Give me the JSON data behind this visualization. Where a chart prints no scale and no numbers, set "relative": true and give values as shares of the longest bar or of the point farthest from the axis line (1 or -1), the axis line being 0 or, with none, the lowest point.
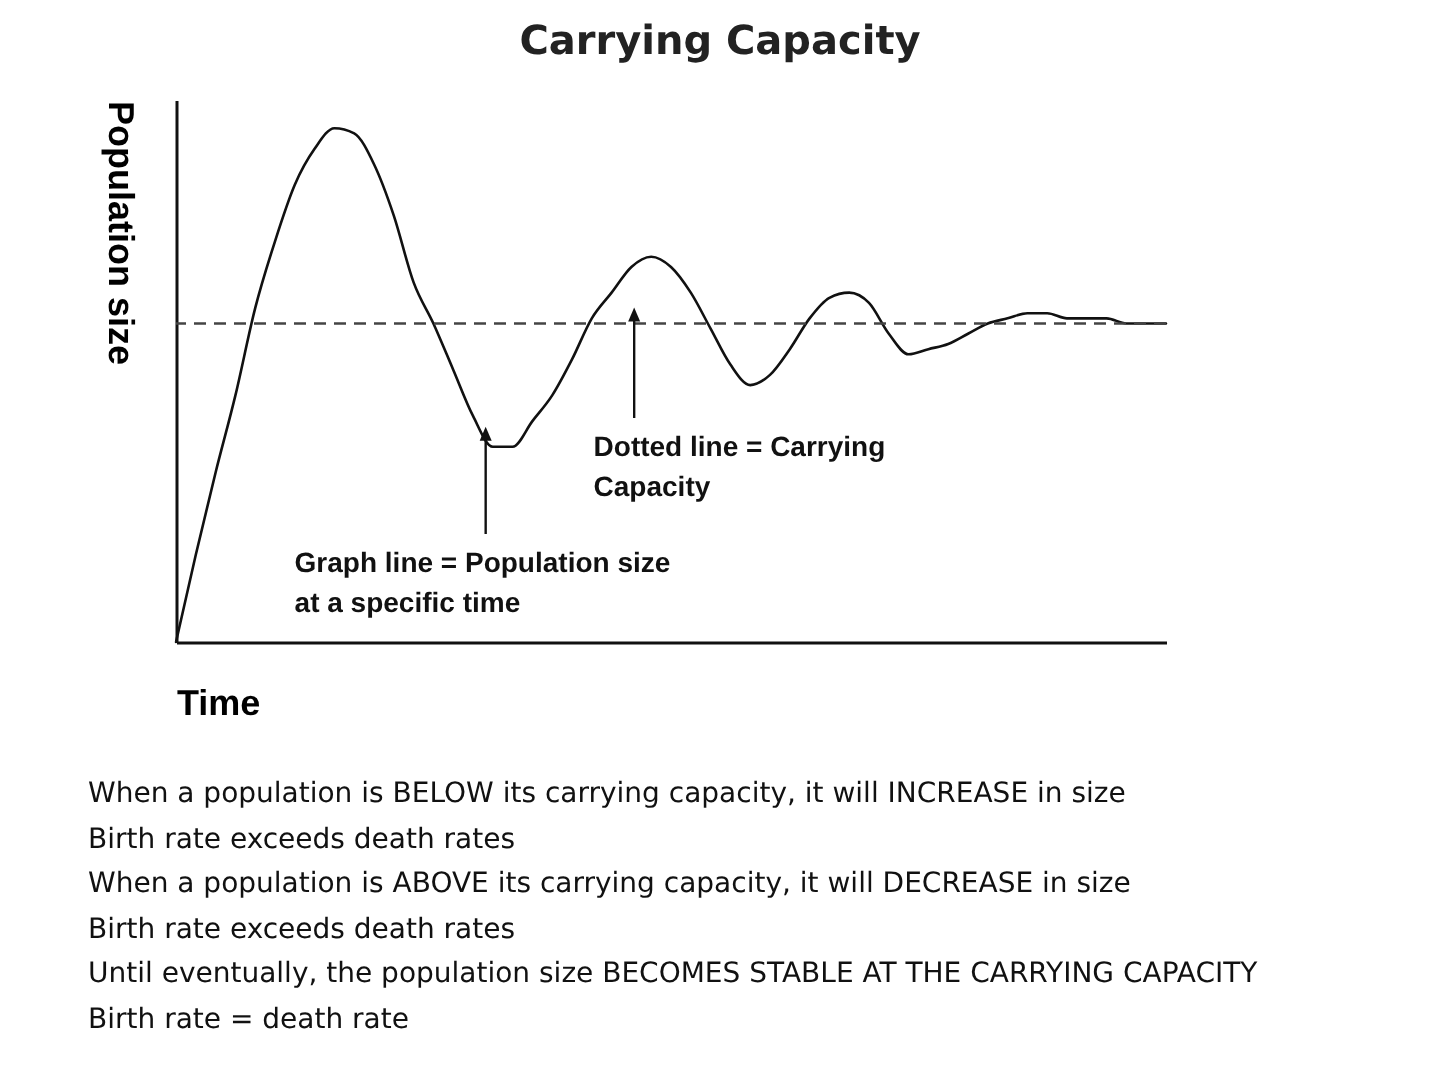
{
  "chart_data": {
    "type": "line",
    "title": "Carrying Capacity",
    "xlabel": "Time",
    "ylabel": "Population size",
    "relative": true,
    "categories": [
      null,
      null,
      null,
      null,
      null,
      null,
      null,
      null,
      null,
      null,
      null,
      null,
      null,
      null,
      null,
      null,
      null,
      null,
      null,
      null,
      null,
      null,
      null,
      null,
      null,
      null,
      null,
      null,
      null,
      null,
      null,
      null,
      null,
      null,
      null,
      null,
      null,
      null,
      null,
      null,
      null,
      null,
      null,
      null,
      null,
      null,
      null,
      null,
      null,
      null,
      null
    ],
    "series": [
      {
        "color": "#111111",
        "values": [
          0,
          0.17,
          0.33,
          0.48,
          0.65,
          0.78,
          0.89,
          0.96,
          1.0,
          0.99,
          0.93,
          0.83,
          0.7,
          0.62,
          0.53,
          0.44,
          0.38,
          0.38,
          0.43,
          0.48,
          0.55,
          0.63,
          0.68,
          0.73,
          0.75,
          0.73,
          0.68,
          0.61,
          0.54,
          0.5,
          0.52,
          0.57,
          0.63,
          0.67,
          0.68,
          0.66,
          0.6,
          0.56,
          0.57,
          0.58,
          0.6,
          0.62,
          0.63,
          0.64,
          0.64,
          0.63,
          0.63,
          0.63,
          0.62,
          0.62,
          0.62
        ]
      }
    ],
    "ref_lines": [
      {
        "axis": "y",
        "value": 0.62,
        "color": "#444444",
        "line_style": "dashed"
      }
    ],
    "annotations": [
      {
        "text": "Graph line = Population size at a specific time",
        "y": 0.38
      },
      {
        "text": "Dotted line = Carrying Capacity"
      },
      "When a population is BELOW its carrying capacity, it will INCREASE in size",
      "Birth rate exceeds death rates",
      "When a population is ABOVE its carrying capacity, it will DECREASE in size",
      "Birth rate exceeds death rates",
      "Until eventually, the population size BECOMES STABLE AT THE CARRYING CAPACITY",
      "Birth rate = death rate"
    ]
  }
}
